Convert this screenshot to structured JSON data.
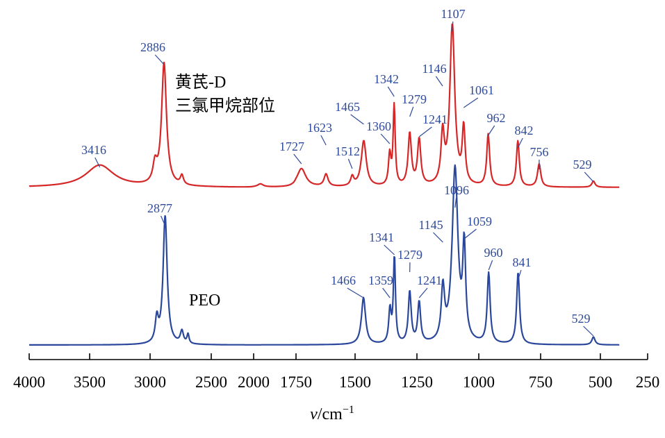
{
  "chart_data": {
    "type": "line",
    "xlabel_main": "v",
    "xlabel_unit": "/cm",
    "xlabel_exp": "−1",
    "xlim": [
      4000,
      250
    ],
    "xticks": [
      4000,
      3500,
      3000,
      2500,
      2000,
      1750,
      1500,
      1250,
      1000,
      750,
      500,
      250
    ],
    "xtick_labels": [
      "4000",
      "3500",
      "3000",
      "2500",
      "2000",
      "1750",
      "1500",
      "1250",
      "1000",
      "750",
      "500",
      "250"
    ],
    "colors": {
      "top": "#d62728",
      "bottom": "#2a479b",
      "peak_label": "#2e4a9a",
      "axis": "#000000"
    },
    "series": [
      {
        "key": "top",
        "label_lines": [
          "黄芪-D",
          "三氯甲烷部位"
        ],
        "peaks": [
          {
            "x": 3416,
            "label": "3416"
          },
          {
            "x": 2886,
            "label": "2886"
          },
          {
            "x": 1727,
            "label": "1727"
          },
          {
            "x": 1623,
            "label": "1623"
          },
          {
            "x": 1512,
            "label": "1512"
          },
          {
            "x": 1465,
            "label": "1465"
          },
          {
            "x": 1360,
            "label": "1360"
          },
          {
            "x": 1342,
            "label": "1342"
          },
          {
            "x": 1279,
            "label": "1279"
          },
          {
            "x": 1241,
            "label": "1241"
          },
          {
            "x": 1146,
            "label": "1146"
          },
          {
            "x": 1107,
            "label": "1107"
          },
          {
            "x": 1061,
            "label": "1061"
          },
          {
            "x": 962,
            "label": "962"
          },
          {
            "x": 842,
            "label": "842"
          },
          {
            "x": 756,
            "label": "756"
          },
          {
            "x": 529,
            "label": "529"
          }
        ]
      },
      {
        "key": "bottom",
        "label_lines": [
          "PEO"
        ],
        "peaks": [
          {
            "x": 2877,
            "label": "2877"
          },
          {
            "x": 1466,
            "label": "1466"
          },
          {
            "x": 1359,
            "label": "1359"
          },
          {
            "x": 1341,
            "label": "1341"
          },
          {
            "x": 1279,
            "label": "1279"
          },
          {
            "x": 1241,
            "label": "1241"
          },
          {
            "x": 1145,
            "label": "1145"
          },
          {
            "x": 1096,
            "label": "1096"
          },
          {
            "x": 1059,
            "label": "1059"
          },
          {
            "x": 960,
            "label": "960"
          },
          {
            "x": 841,
            "label": "841"
          },
          {
            "x": 529,
            "label": "529"
          }
        ]
      }
    ]
  }
}
